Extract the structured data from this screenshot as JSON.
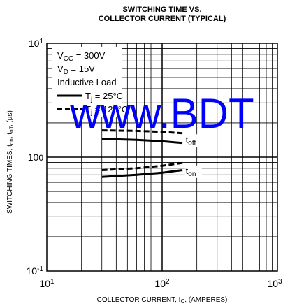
{
  "chart_data": {
    "type": "line",
    "title_line1": "SWITCHING TIME VS.",
    "title_line2": "COLLECTOR CURRENT (TYPICAL)",
    "xlabel": "COLLECTOR CURRENT, I",
    "xlabel_sub": "C",
    "xlabel_suffix": ", (AMPERES)",
    "ylabel_main": "SWITCHING TIMES, t",
    "ylabel_on_sub": "on",
    "ylabel_sep": ", t",
    "ylabel_off_sub": "off",
    "ylabel_unit": ", (µs)",
    "x_scale": "log",
    "y_scale": "log",
    "xlim": [
      10,
      1000
    ],
    "ylim": [
      0.1,
      10
    ],
    "grid": true,
    "x_ticks": [
      {
        "base": "10",
        "exp": "1"
      },
      {
        "base": "10",
        "exp": "2"
      },
      {
        "base": "10",
        "exp": "3"
      }
    ],
    "y_ticks": [
      {
        "base": "10",
        "exp": "1",
        "suffix": ""
      },
      {
        "base": "10",
        "exp": "",
        "suffix": "0"
      },
      {
        "base": "10",
        "exp": "-1",
        "suffix": ""
      }
    ],
    "legend": {
      "vcc_label": "V",
      "vcc_sub": "CC",
      "vcc_value": " = 300V",
      "vd_label": "V",
      "vd_sub": "D",
      "vd_value": " = 15V",
      "load": "Inductive Load",
      "tj25_label": "T",
      "tj25_sub": "j",
      "tj25_value": " = 25°C",
      "tj125_label": "T",
      "tj125_sub": "j",
      "tj125_value": " = 125°C"
    },
    "series": [
      {
        "name": "t_off",
        "condition": "Tj = 25°C",
        "style": "solid",
        "x": [
          30,
          60,
          100,
          150
        ],
        "y": [
          1.45,
          1.42,
          1.38,
          1.33
        ]
      },
      {
        "name": "t_off",
        "condition": "Tj = 125°C",
        "style": "dashed",
        "x": [
          30,
          60,
          100,
          150
        ],
        "y": [
          1.72,
          1.7,
          1.67,
          1.62
        ]
      },
      {
        "name": "t_on",
        "condition": "Tj = 25°C",
        "style": "solid",
        "x": [
          30,
          60,
          100,
          150
        ],
        "y": [
          0.67,
          0.7,
          0.73,
          0.77
        ]
      },
      {
        "name": "t_on",
        "condition": "Tj = 125°C",
        "style": "dashed",
        "x": [
          30,
          60,
          100,
          150
        ],
        "y": [
          0.77,
          0.8,
          0.84,
          0.89
        ]
      }
    ],
    "annotations": [
      {
        "base": "t",
        "sub": "off",
        "x": 160,
        "y": 1.5
      },
      {
        "base": "t",
        "sub": "on",
        "x": 160,
        "y": 0.8
      }
    ]
  },
  "watermark": "www.BDT"
}
